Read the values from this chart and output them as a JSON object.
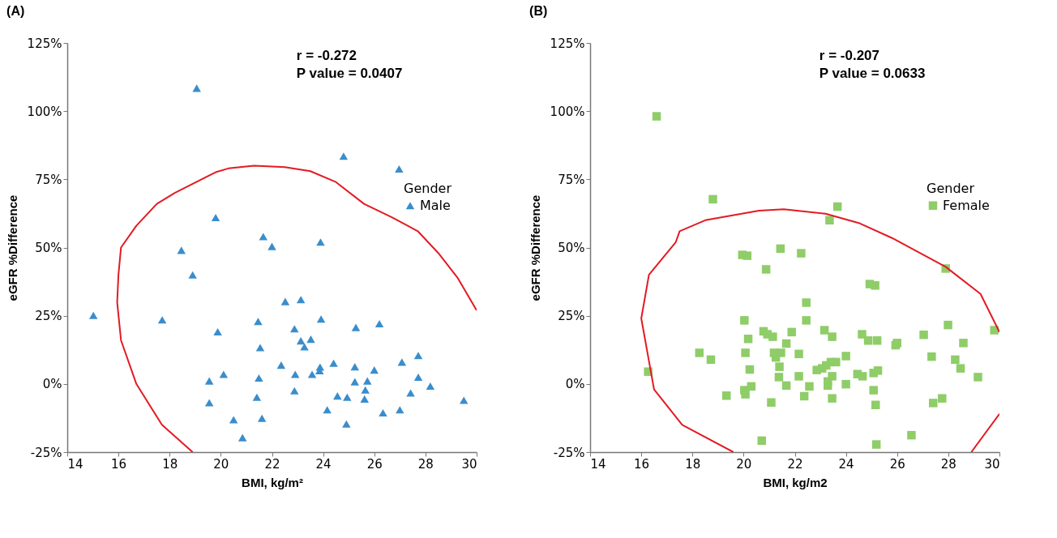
{
  "chart_data": [
    {
      "type": "scatter",
      "title": "(A)",
      "xlabel": "BMI, kg/m²",
      "ylabel": "eGFR %Difference",
      "legend_title": "Gender",
      "legend": "top right",
      "grid": false,
      "annotations": [
        "r = -0.272",
        "P value = 0.0407"
      ],
      "xlim": [
        14,
        30
      ],
      "xticks": [
        14,
        16,
        18,
        20,
        22,
        24,
        26,
        28,
        30
      ],
      "ylim": [
        -25,
        125
      ],
      "yticks": [
        {
          "value": -25,
          "label": "-25%"
        },
        {
          "value": 0,
          "label": "0%"
        },
        {
          "value": 25,
          "label": "25%"
        },
        {
          "value": 50,
          "label": "50%"
        },
        {
          "value": 75,
          "label": "75%"
        },
        {
          "value": 100,
          "label": "100%"
        },
        {
          "value": 125,
          "label": "125%"
        }
      ],
      "series": [
        {
          "name": "Male",
          "color": "#3a8dcc",
          "marker": "triangle",
          "x": [
            19.06,
            19.8,
            18.46,
            18.9,
            24.8,
            26.97,
            21.66,
            22.0,
            23.9,
            15.02,
            17.71,
            19.88,
            19.55,
            19.55,
            20.11,
            20.5,
            20.85,
            21.46,
            21.54,
            21.49,
            21.41,
            21.61,
            22.36,
            22.52,
            23.13,
            22.88,
            22.91,
            22.88,
            23.13,
            23.27,
            23.52,
            23.57,
            23.92,
            23.86,
            23.88,
            24.41,
            24.16,
            24.56,
            24.94,
            24.91,
            25.28,
            25.24,
            25.24,
            25.73,
            25.65,
            25.62,
            26.0,
            26.2,
            26.34,
            27.0,
            27.08,
            27.42,
            27.72,
            27.72,
            28.19,
            29.5
          ],
          "values": [
            108.4,
            61,
            49,
            40,
            83.5,
            78.8,
            54,
            50.4,
            52,
            25.1,
            23.5,
            19.1,
            1.1,
            -6.9,
            3.5,
            -13.1,
            -19.7,
            22.9,
            13.3,
            2.2,
            -4.9,
            -12.6,
            6.9,
            30.2,
            30.9,
            20.2,
            3.5,
            -2.5,
            15.8,
            13.6,
            16.4,
            3.5,
            23.8,
            4.9,
            6.2,
            7.6,
            -9.5,
            -4.4,
            -4.9,
            -14.7,
            20.7,
            6.3,
            0.8,
            1.1,
            -2.2,
            -5.5,
            5.1,
            22.1,
            -10.6,
            -9.5,
            8.0,
            -3.3,
            10.4,
            2.5,
            -0.8,
            -6.0
          ]
        },
        {
          "type": "line",
          "color": "#e31a23",
          "x": [
            18.9,
            17.7,
            16.7,
            16.1,
            15.95,
            16.0,
            16.1,
            16.7,
            17.5,
            18.2,
            19.8,
            20.3,
            21.3,
            22.5,
            23.5,
            24.5,
            25.6,
            26.7,
            27.7,
            28.5,
            29.25,
            30
          ],
          "values": [
            -25,
            -15,
            0,
            16,
            30,
            40,
            50,
            58,
            66,
            70,
            77.6,
            79,
            80,
            79.5,
            78,
            74,
            66,
            61,
            56,
            48,
            39,
            27
          ]
        }
      ]
    },
    {
      "type": "scatter",
      "title": "(B)",
      "xlabel": "BMI, kg/m2",
      "ylabel": "eGFR %Difference",
      "legend_title": "Gender",
      "legend": "top right",
      "grid": false,
      "annotations": [
        "r = -0.207",
        "P value = 0.0633"
      ],
      "xlim": [
        14,
        30
      ],
      "xticks": [
        14,
        16,
        18,
        20,
        22,
        24,
        26,
        28,
        30
      ],
      "ylim": [
        -25,
        125
      ],
      "yticks": [
        {
          "value": -25,
          "label": "-25%"
        },
        {
          "value": 0,
          "label": "0%"
        },
        {
          "value": 25,
          "label": "25%"
        },
        {
          "value": 50,
          "label": "50%"
        },
        {
          "value": 75,
          "label": "75%"
        },
        {
          "value": 100,
          "label": "100%"
        },
        {
          "value": 125,
          "label": "125%"
        }
      ],
      "series": [
        {
          "name": "Female",
          "color": "#8fcd68",
          "marker": "square",
          "x": [
            16.6,
            18.8,
            19.95,
            20.14,
            20.88,
            21.44,
            23.67,
            23.36,
            22.25,
            27.9,
            16.27,
            18.27,
            18.72,
            19.33,
            20.03,
            20.18,
            20.07,
            20.24,
            20.03,
            20.07,
            20.3,
            20.78,
            20.93,
            21.08,
            21.14,
            21.19,
            21.26,
            21.4,
            21.38,
            21.46,
            21.67,
            21.67,
            21.88,
            22.16,
            22.16,
            22.45,
            22.45,
            22.37,
            22.57,
            22.86,
            23.07,
            23.16,
            23.23,
            23.29,
            23.29,
            23.41,
            23.46,
            23.46,
            23.46,
            23.61,
            24.0,
            24.0,
            24.45,
            24.63,
            24.65,
            24.87,
            24.93,
            25.14,
            25.08,
            25.08,
            25.22,
            25.25,
            25.16,
            25.19,
            25.94,
            26.0,
            26.56,
            27.04,
            27.35,
            27.41,
            27.76,
            27.99,
            28.27,
            28.48,
            28.59,
            29.16,
            29.8,
            20.71
          ],
          "values": [
            98.1,
            67.7,
            47.3,
            47,
            42,
            49.6,
            65,
            60,
            47.9,
            42.3,
            4.5,
            11.4,
            8.9,
            -4.3,
            23.3,
            16.5,
            11.4,
            5.3,
            -2.3,
            -3.8,
            -0.9,
            19.3,
            18.2,
            -6.8,
            17.3,
            11.4,
            9.7,
            6.3,
            2.5,
            11.4,
            14.8,
            -0.6,
            19.0,
            11.0,
            2.8,
            29.8,
            23.3,
            -4.5,
            -0.9,
            5.1,
            5.7,
            19.7,
            6.8,
            0.9,
            -0.6,
            8.0,
            17.3,
            2.8,
            -5.3,
            8.0,
            10.2,
            -0.1,
            3.6,
            18.2,
            2.8,
            15.9,
            36.6,
            36.1,
            -2.3,
            4.0,
            15.9,
            4.9,
            -7.7,
            -22.2,
            14.2,
            15.0,
            -18.8,
            18.0,
            10.0,
            -7.0,
            -5.3,
            21.6,
            8.9,
            5.7,
            15.0,
            2.5,
            19.7,
            -20.8
          ]
        },
        {
          "type": "line",
          "color": "#e31a23",
          "x": [
            19.6,
            17.6,
            16.5,
            16.0,
            16.3,
            17.35,
            17.5,
            18.5,
            20.6,
            21.57,
            23.2,
            24.5,
            25.8,
            27.9,
            29.26,
            30,
            null,
            30,
            28.9
          ],
          "values": [
            -25,
            -15,
            -2,
            24,
            40,
            52,
            56,
            60,
            63.5,
            64,
            62.4,
            59,
            53.5,
            42.9,
            33,
            19,
            null,
            -11,
            -25
          ]
        }
      ]
    }
  ]
}
